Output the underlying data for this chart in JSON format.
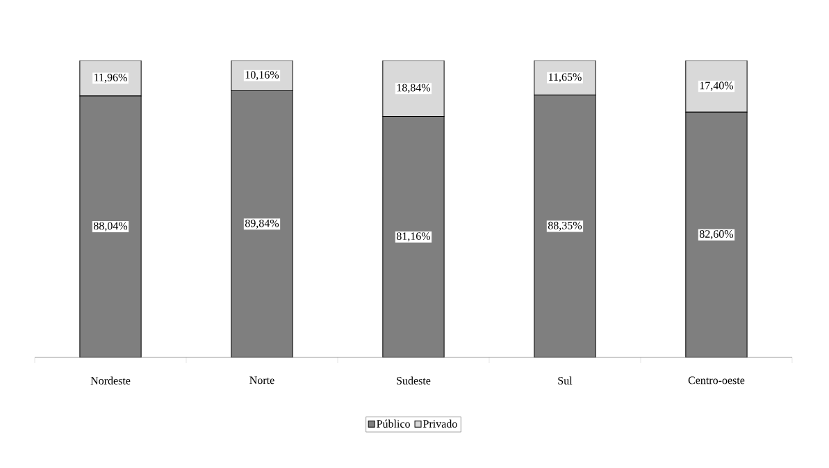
{
  "chart_data": {
    "type": "bar",
    "stacked": true,
    "legend": "bottom",
    "categories": [
      "Nordeste",
      "Norte",
      "Sudeste",
      "Sul",
      "Centro-oeste"
    ],
    "series": [
      {
        "name": "Público",
        "color": "#7f7f7f",
        "values": [
          88.04,
          89.84,
          81.16,
          88.35,
          82.6
        ],
        "value_labels": [
          "88,04%",
          "89,84%",
          "81,16%",
          "88,35%",
          "82,60%"
        ]
      },
      {
        "name": "Privado",
        "color": "#d9d9d9",
        "values": [
          11.96,
          10.16,
          18.84,
          11.65,
          17.4
        ],
        "value_labels": [
          "11,96%",
          "10,16%",
          "18,84%",
          "11,65%",
          "17,40%"
        ]
      }
    ]
  }
}
